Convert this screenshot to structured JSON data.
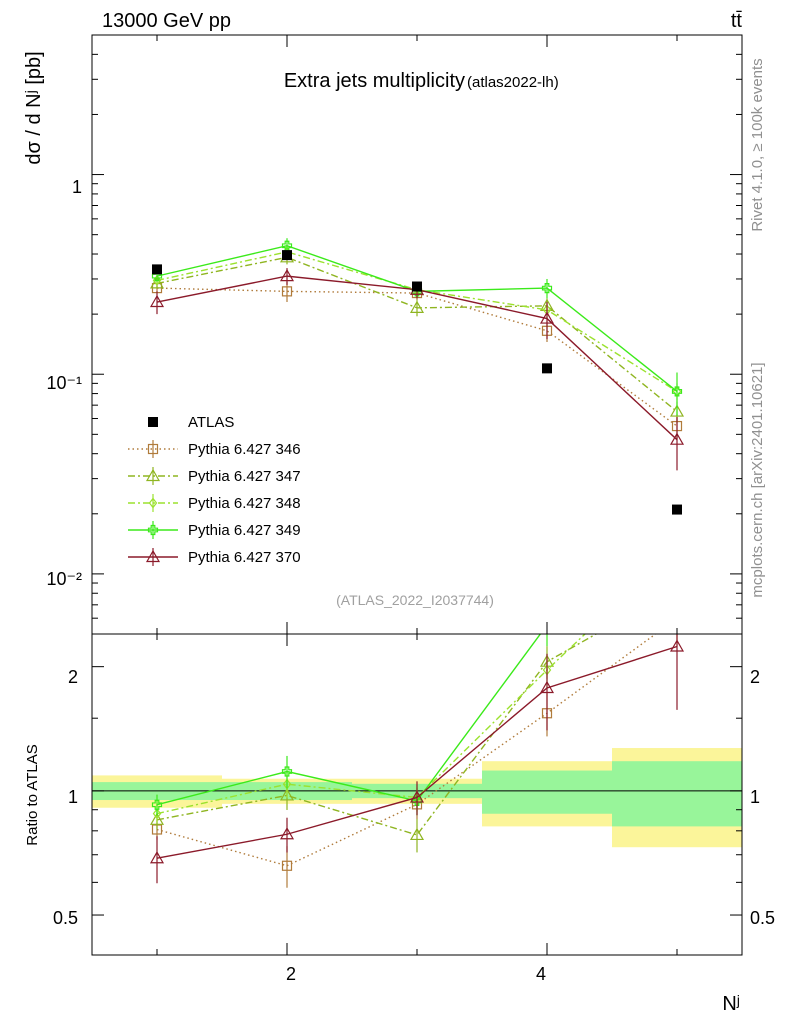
{
  "header": {
    "energy_label": "13000 GeV pp",
    "process_label": "tt̄",
    "title": "Extra jets multiplicity",
    "title_tag": "(atlas2022-lh)",
    "analysis_id": "(ATLAS_2022_I2037744)",
    "side_rivet": "Rivet 4.1.0, ≥ 100k events",
    "side_site": "mcplots.cern.ch [arXiv:2401.10621]"
  },
  "axes": {
    "ylabel_main": "dσ / d Nʲ [pb]",
    "ylabel_ratio": "Ratio to ATLAS",
    "xlabel": "Nʲ",
    "main_ticks": [
      "1",
      "10⁻¹",
      "10⁻²"
    ],
    "ratio_ticks": [
      "2",
      "1",
      "0.5"
    ],
    "x_ticks": [
      "2",
      "4"
    ]
  },
  "legend": [
    {
      "label": "ATLAS",
      "color": "#000000",
      "marker": "square-filled",
      "dash": ""
    },
    {
      "label": "Pythia 6.427 346",
      "color": "#b07b3b",
      "marker": "square-open",
      "dash": "1.5,3"
    },
    {
      "label": "Pythia 6.427 347",
      "color": "#8fb521",
      "marker": "triangle-open",
      "dash": "7,3,2,3"
    },
    {
      "label": "Pythia 6.427 348",
      "color": "#9be22e",
      "marker": "diamond-open",
      "dash": "7,3,2,3"
    },
    {
      "label": "Pythia 6.427 349",
      "color": "#3bea1a",
      "marker": "cross-open",
      "dash": ""
    },
    {
      "label": "Pythia 6.427 370",
      "color": "#8b1a2a",
      "marker": "triangle-open",
      "dash": ""
    }
  ],
  "chart_data": {
    "type": "line",
    "title": "Extra jets multiplicity",
    "xlabel": "Nʲ",
    "ylabel": "dσ / d Nʲ [pb]",
    "x": [
      1,
      2,
      3,
      4,
      5
    ],
    "xlim": [
      0.5,
      5.5
    ],
    "ylim_main": [
      0.005,
      5
    ],
    "ylim_ratio": [
      0.4,
      2.4
    ],
    "yscale": "log",
    "data": {
      "name": "ATLAS",
      "values": [
        0.335,
        0.395,
        0.275,
        0.107,
        0.021
      ],
      "band_stat": [
        0.05,
        0.05,
        0.04,
        0.12,
        0.18
      ],
      "band_total": [
        0.09,
        0.07,
        0.07,
        0.18,
        0.27
      ]
    },
    "series": [
      {
        "name": "Pythia 6.427 346",
        "values": [
          0.27,
          0.26,
          0.255,
          0.165,
          0.055
        ],
        "errors": [
          0.015,
          0.03,
          0.02,
          0.02,
          0.008
        ]
      },
      {
        "name": "Pythia 6.427 347",
        "values": [
          0.285,
          0.385,
          0.215,
          0.22,
          0.065
        ],
        "errors": [
          0.015,
          0.03,
          0.02,
          0.02,
          0.008
        ]
      },
      {
        "name": "Pythia 6.427 348",
        "values": [
          0.295,
          0.41,
          0.265,
          0.21,
          0.082
        ],
        "errors": [
          0.015,
          0.03,
          0.02,
          0.02,
          0.008
        ]
      },
      {
        "name": "Pythia 6.427 349",
        "values": [
          0.31,
          0.44,
          0.26,
          0.27,
          0.082
        ],
        "errors": [
          0.018,
          0.04,
          0.02,
          0.03,
          0.02
        ]
      },
      {
        "name": "Pythia 6.427 370",
        "values": [
          0.23,
          0.31,
          0.265,
          0.19,
          0.047
        ],
        "errors": [
          0.03,
          0.03,
          0.025,
          0.04,
          0.014
        ]
      }
    ]
  }
}
